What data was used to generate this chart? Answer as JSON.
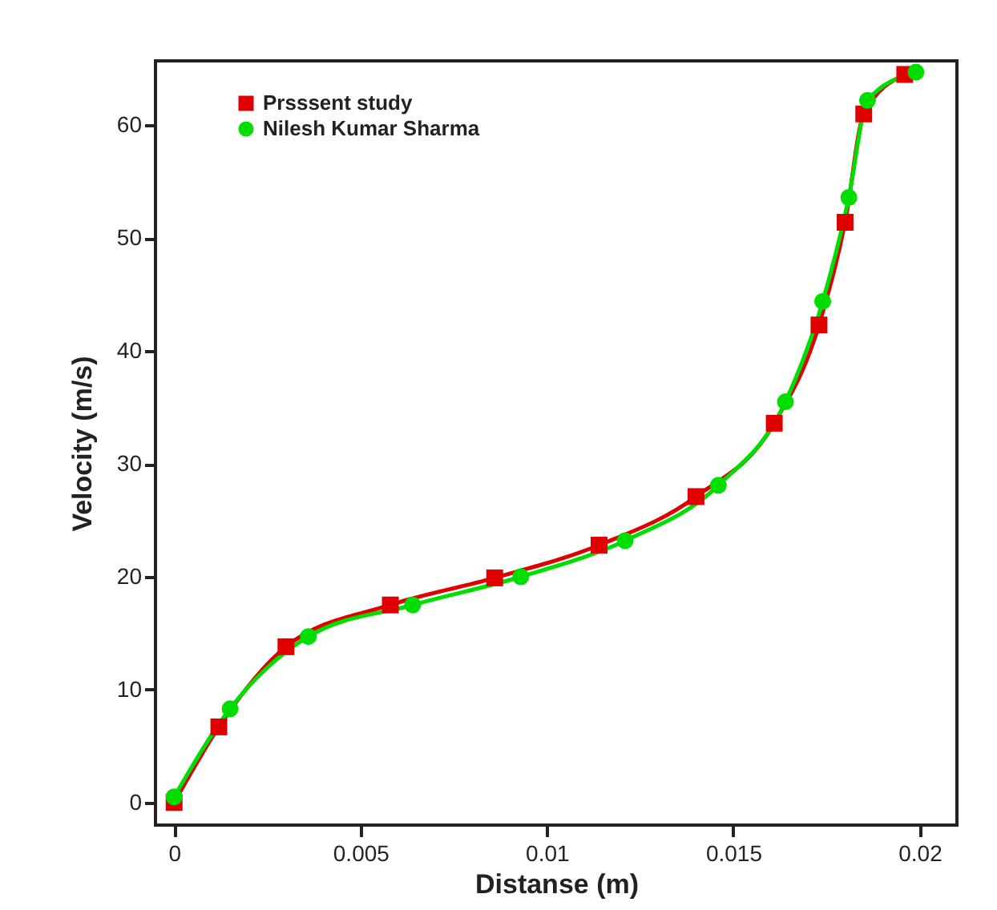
{
  "chart_data": {
    "type": "line",
    "xlabel": "Distanse (m)",
    "ylabel": "Velocity (m/s)",
    "xlim": [
      -0.0005,
      0.021
    ],
    "ylim": [
      -2,
      65.7
    ],
    "xticks": [
      0,
      0.005,
      0.01,
      0.015,
      0.02
    ],
    "yticks": [
      0,
      10,
      20,
      30,
      40,
      50,
      60
    ],
    "grid": false,
    "legend": "top left",
    "line_style": "solid",
    "series": [
      {
        "name": "Prsssent study",
        "color": "#e00000",
        "marker": "square",
        "x": [
          0,
          0.0012,
          0.003,
          0.0058,
          0.0086,
          0.0114,
          0.014,
          0.0161,
          0.0173,
          0.018,
          0.0185,
          0.0196
        ],
        "values": [
          0,
          6.7,
          13.8,
          17.5,
          19.9,
          22.8,
          27.1,
          33.6,
          42.3,
          51.4,
          61.0,
          64.5
        ]
      },
      {
        "name": "Nilesh Kumar Sharma",
        "color": "#00dd00",
        "marker": "circle",
        "x": [
          0,
          0.0015,
          0.0036,
          0.0064,
          0.0093,
          0.0121,
          0.0146,
          0.0164,
          0.0174,
          0.0181,
          0.0186,
          0.0199
        ],
        "values": [
          0.5,
          8.3,
          14.7,
          17.5,
          20.0,
          23.2,
          28.1,
          35.5,
          44.4,
          53.6,
          62.2,
          64.7
        ]
      }
    ]
  }
}
